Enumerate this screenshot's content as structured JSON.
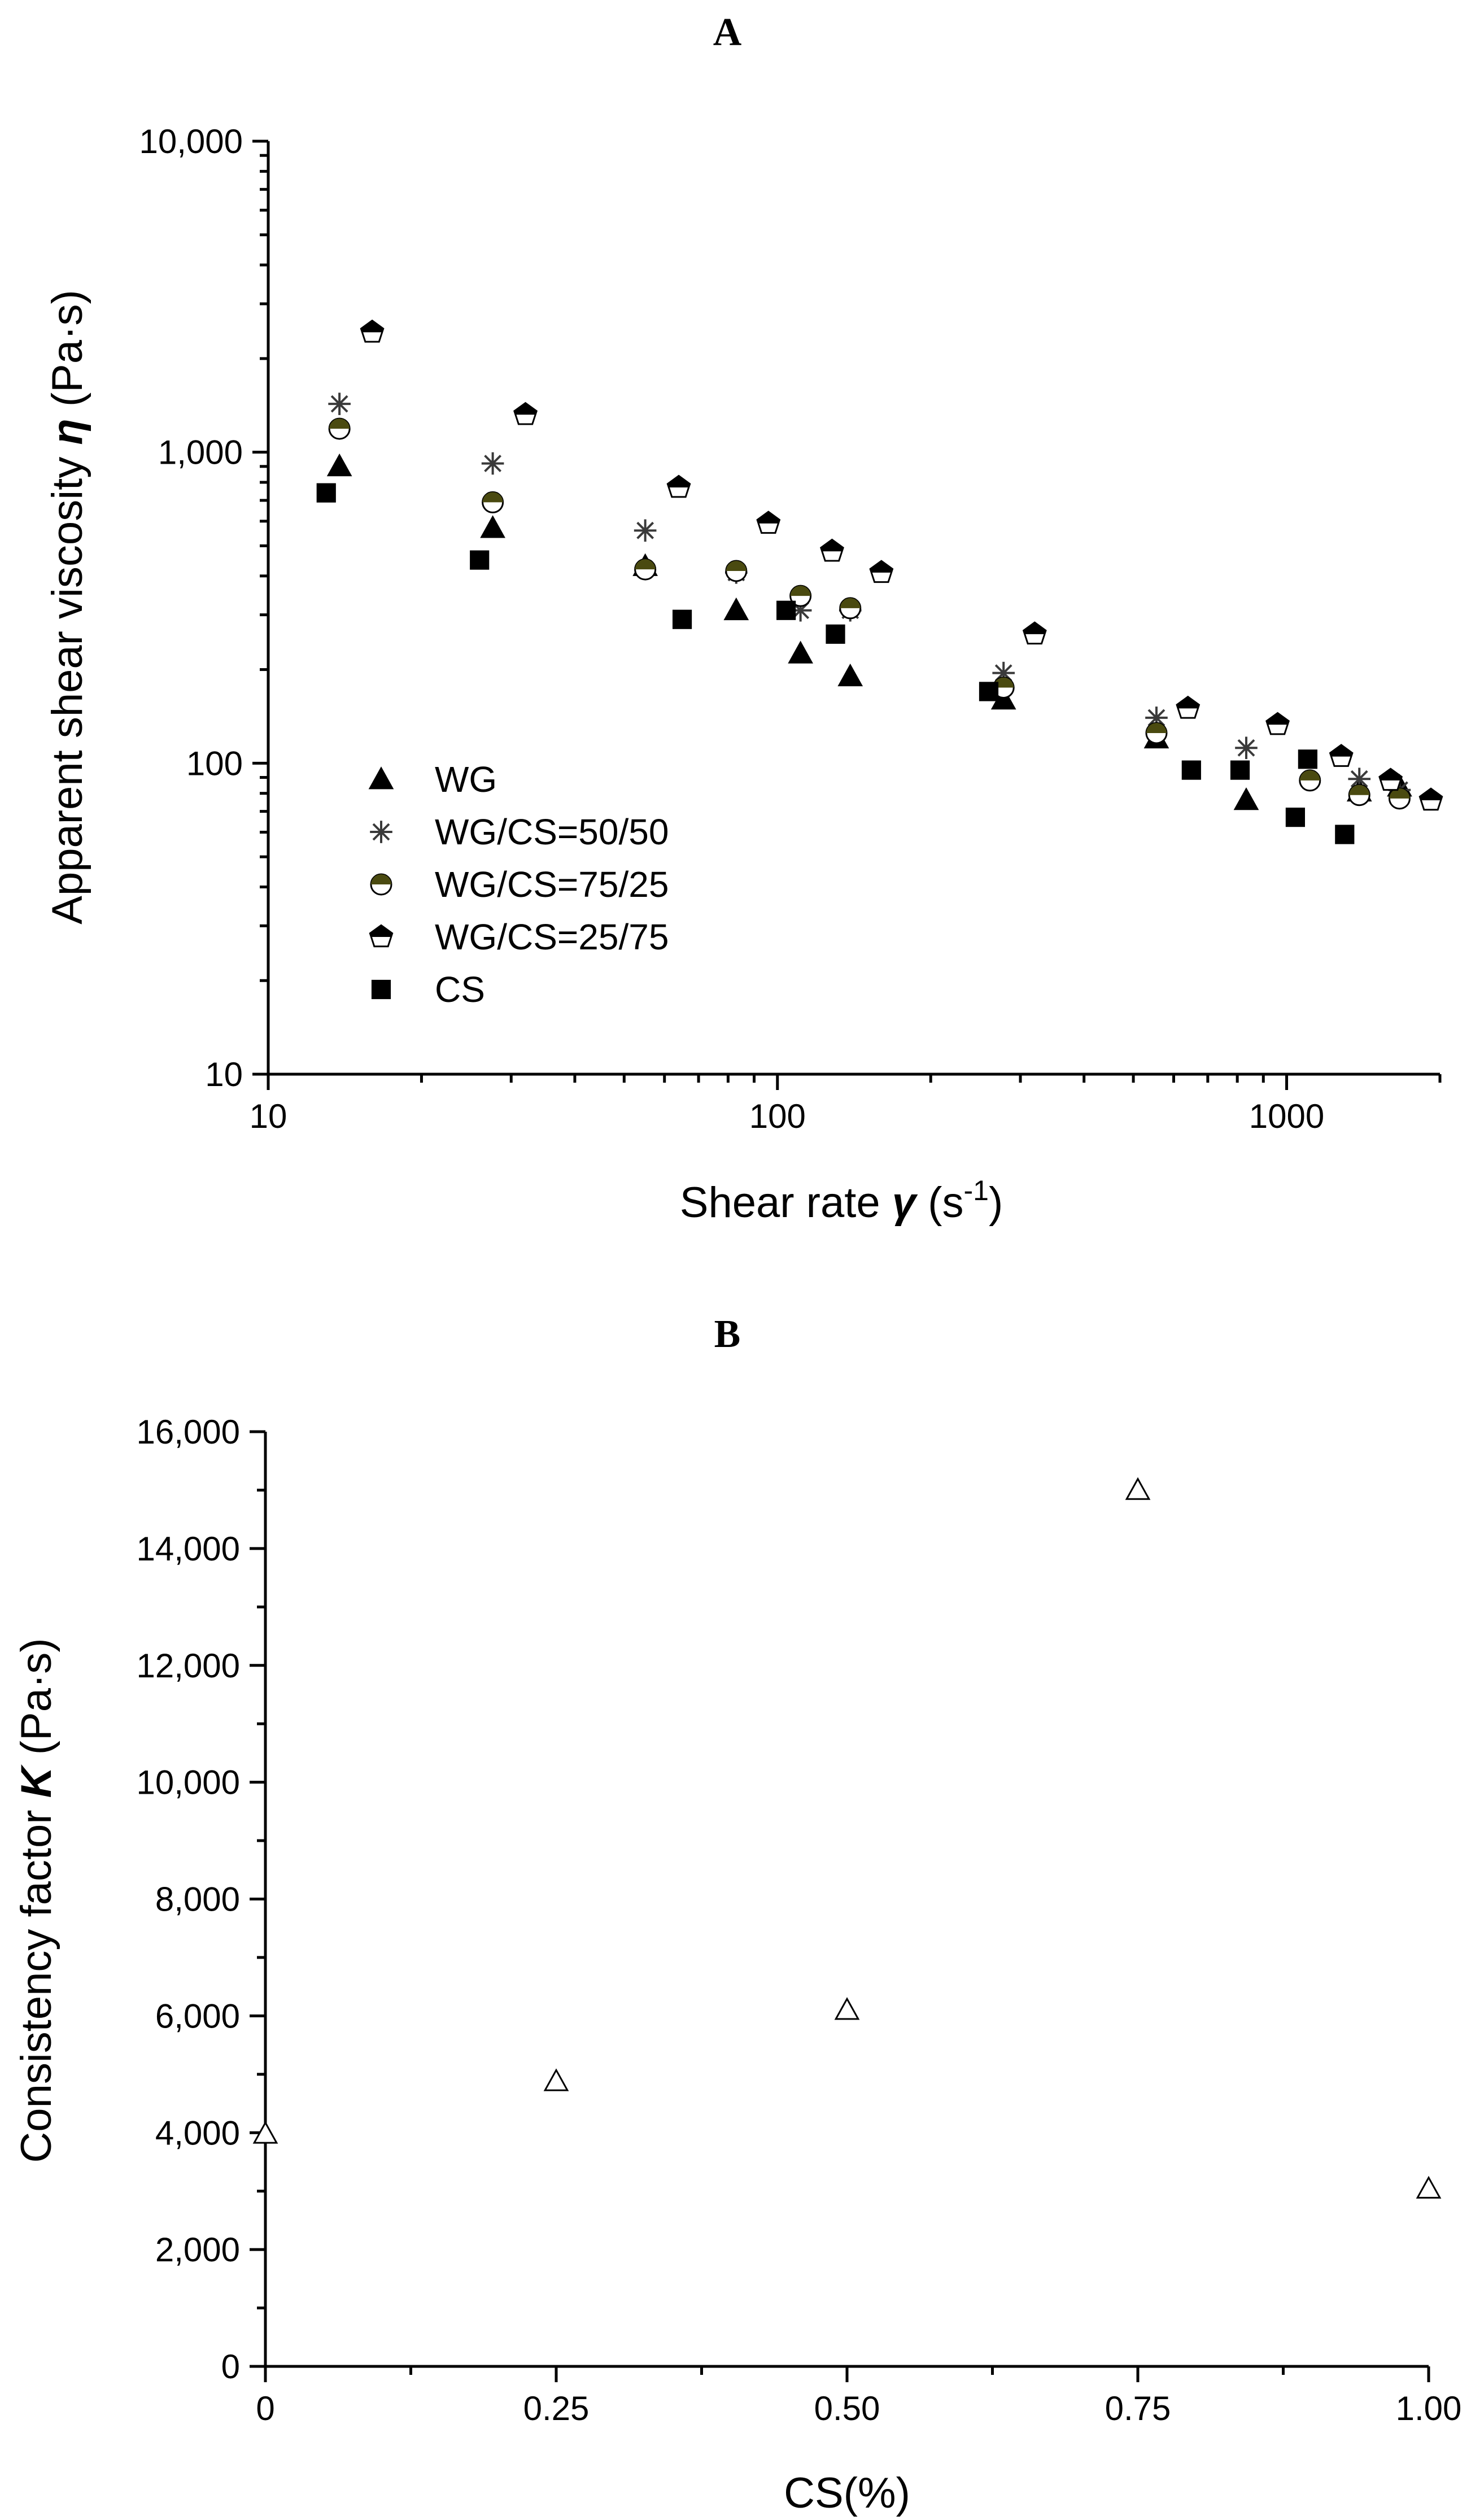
{
  "chart_data": [
    {
      "panel": "A",
      "title": "A",
      "type": "scatter",
      "xscale": "log",
      "yscale": "log",
      "xlim": [
        10,
        2000
      ],
      "ylim": [
        10,
        10000
      ],
      "xlabel": {
        "main": "Shear rate ",
        "symbol": "γ",
        "unit_pre": " (s",
        "unit_sup": "-1",
        "unit_post": ")"
      },
      "ylabel": {
        "main": "Apparent shear viscosity ",
        "symbol": "η",
        "unit": "  (Pa·s)"
      },
      "x_ticks": [
        {
          "value": 10,
          "label": "10"
        },
        {
          "value": 100,
          "label": "100"
        },
        {
          "value": 1000,
          "label": "1000"
        }
      ],
      "y_ticks": [
        {
          "value": 10,
          "label": "10"
        },
        {
          "value": 100,
          "label": "100"
        },
        {
          "value": 1000,
          "label": "1,000"
        },
        {
          "value": 10000,
          "label": "10,000"
        }
      ],
      "legend_position": "bottom-left",
      "series": [
        {
          "name": "WG",
          "marker": "triangle-filled",
          "color": "#000000",
          "points": [
            [
              13.8,
              900
            ],
            [
              27.6,
              570
            ],
            [
              55,
              430
            ],
            [
              83,
              310
            ],
            [
              111,
              225
            ],
            [
              139,
              190
            ],
            [
              278,
              160
            ],
            [
              555,
              120
            ],
            [
              833,
              76
            ],
            [
              1389,
              81
            ],
            [
              1666,
              84
            ]
          ]
        },
        {
          "name": "WG/CS=50/50",
          "marker": "asterisk",
          "color": "#3a3a3a",
          "accent_color": "#7a5c20",
          "points": [
            [
              13.8,
              1430
            ],
            [
              27.6,
              920
            ],
            [
              55,
              560
            ],
            [
              83,
              410
            ],
            [
              111,
              310
            ],
            [
              139,
              310
            ],
            [
              278,
              195
            ],
            [
              555,
              140
            ],
            [
              833,
              112
            ],
            [
              1389,
              89
            ],
            [
              1666,
              82
            ]
          ]
        },
        {
          "name": "WG/CS=75/25",
          "marker": "circle-half",
          "color": "#000000",
          "accent_color": "#4a4a10",
          "points": [
            [
              13.8,
              1190
            ],
            [
              27.6,
              690
            ],
            [
              55,
              420
            ],
            [
              83,
              415
            ],
            [
              111,
              345
            ],
            [
              139,
              315
            ],
            [
              278,
              175
            ],
            [
              555,
              125
            ],
            [
              1111,
              88
            ],
            [
              1389,
              79
            ],
            [
              1666,
              77
            ]
          ]
        },
        {
          "name": "WG/CS=25/75",
          "marker": "pentagon-half",
          "color": "#000000",
          "points": [
            [
              16,
              2430
            ],
            [
              32,
              1320
            ],
            [
              64,
              770
            ],
            [
              96,
              590
            ],
            [
              128,
              480
            ],
            [
              160,
              410
            ],
            [
              320,
              260
            ],
            [
              640,
              150
            ],
            [
              960,
              133
            ],
            [
              1280,
              105
            ],
            [
              1600,
              88
            ],
            [
              1920,
              76
            ]
          ]
        },
        {
          "name": "CS",
          "marker": "square-filled",
          "color": "#000000",
          "points": [
            [
              13,
              740
            ],
            [
              26,
              450
            ],
            [
              65,
              290
            ],
            [
              104,
              310
            ],
            [
              130,
              260
            ],
            [
              260,
              170
            ],
            [
              650,
              95
            ],
            [
              810,
              95
            ],
            [
              1040,
              67
            ],
            [
              1100,
              103
            ],
            [
              1300,
              59
            ]
          ]
        }
      ]
    },
    {
      "panel": "B",
      "title": "B",
      "type": "scatter",
      "xlim": [
        0,
        1.0
      ],
      "ylim": [
        0,
        16000
      ],
      "xlabel": "CS(%)",
      "ylabel": {
        "main": "Consistency factor ",
        "symbol": "K",
        "unit": " (Pa·s)"
      },
      "x_ticks": [
        {
          "value": 0,
          "label": "0"
        },
        {
          "value": 0.25,
          "label": "0.25"
        },
        {
          "value": 0.5,
          "label": "0.50"
        },
        {
          "value": 0.75,
          "label": "0.75"
        },
        {
          "value": 1.0,
          "label": "1.00"
        }
      ],
      "y_ticks": [
        {
          "value": 0,
          "label": "0"
        },
        {
          "value": 2000,
          "label": "2,000"
        },
        {
          "value": 4000,
          "label": "4,000"
        },
        {
          "value": 6000,
          "label": "6,000"
        },
        {
          "value": 8000,
          "label": "8,000"
        },
        {
          "value": 10000,
          "label": "10,000"
        },
        {
          "value": 12000,
          "label": "12,000"
        },
        {
          "value": 14000,
          "label": "14,000"
        },
        {
          "value": 16000,
          "label": "16,000"
        }
      ],
      "series": [
        {
          "name": "K",
          "marker": "triangle-open",
          "color": "#000000",
          "points": [
            [
              0,
              3980
            ],
            [
              0.25,
              4880
            ],
            [
              0.5,
              6100
            ],
            [
              0.75,
              15000
            ],
            [
              1.0,
              3040
            ]
          ]
        }
      ]
    }
  ]
}
